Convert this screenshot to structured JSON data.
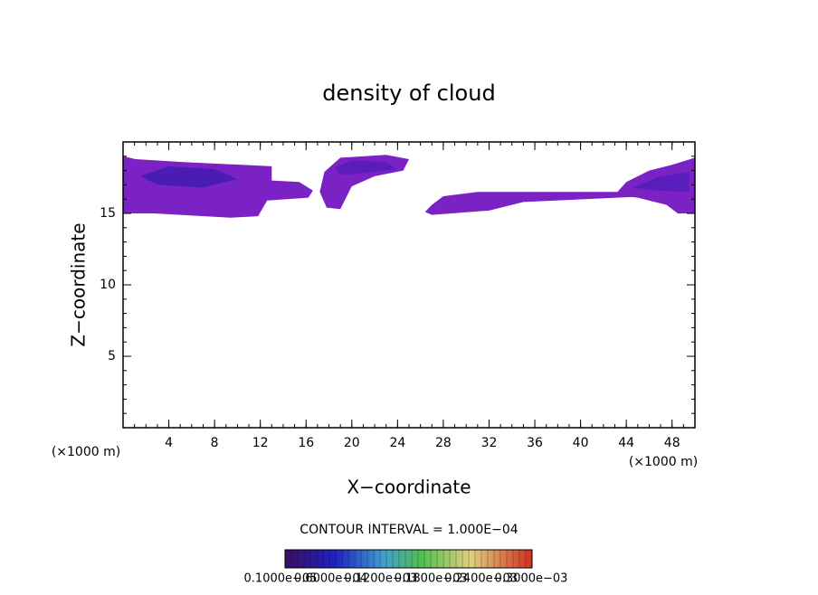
{
  "chart_data": {
    "type": "contour",
    "title": "density of cloud",
    "xlabel": "X−coordinate",
    "ylabel": "Z−coordinate",
    "xunit": "(×1000 m)",
    "annotation": "CONTOUR INTERVAL = 1.000E−04",
    "xlim": [
      0,
      50
    ],
    "xticks": [
      4,
      8,
      12,
      16,
      20,
      24,
      28,
      32,
      36,
      40,
      44,
      48
    ],
    "ylim": [
      0,
      20
    ],
    "yticks": [
      5,
      10,
      15
    ],
    "regions": [
      {
        "color": "#7a22c4",
        "x": [
          0,
          1.1,
          5.1,
          13,
          13,
          15.4,
          16.6,
          16.2,
          12.6,
          11.8,
          9.4,
          2.7,
          0
        ],
        "y": [
          19,
          18.8,
          18.6,
          18.3,
          17.3,
          17.2,
          16.6,
          16.1,
          15.9,
          14.8,
          14.7,
          15,
          15
        ]
      },
      {
        "color": "#7a22c4",
        "x": [
          17.2,
          17.6,
          19,
          23,
          25,
          24.5,
          22,
          20,
          19,
          17.8
        ],
        "y": [
          16.5,
          17.9,
          18.9,
          19.1,
          18.8,
          18,
          17.6,
          16.9,
          15.3,
          15.4
        ]
      },
      {
        "color": "#7a22c4",
        "x": [
          26.4,
          27,
          28,
          31,
          45.5,
          46,
          35,
          32,
          27
        ],
        "y": [
          15.1,
          15.6,
          16.2,
          16.5,
          16.5,
          16.2,
          15.8,
          15.2,
          14.9
        ]
      },
      {
        "color": "#7a22c4",
        "x": [
          43,
          44,
          46,
          48,
          50,
          50,
          48.5,
          47.5,
          45
        ],
        "y": [
          16.3,
          17.2,
          18,
          18.4,
          18.9,
          15,
          15,
          15.6,
          16.1
        ]
      },
      {
        "color": "#4a1cb4",
        "x": [
          1.5,
          4,
          8,
          10,
          7,
          3
        ],
        "y": [
          17.6,
          18.3,
          18.1,
          17.4,
          16.8,
          17
        ]
      },
      {
        "color": "#5a1cbc",
        "x": [
          18.5,
          20,
          23,
          24,
          21,
          19
        ],
        "y": [
          18.2,
          18.7,
          18.6,
          18.1,
          17.8,
          17.7
        ]
      },
      {
        "color": "#5a1cbc",
        "x": [
          44.5,
          47,
          49.5,
          49.5,
          47
        ],
        "y": [
          16.8,
          17.6,
          17.9,
          16.5,
          16.6
        ]
      }
    ],
    "colorbar_labels": [
      "0.1000e−05",
      "0.6000e−04",
      "0.1200e−03",
      "0.1800e−03",
      "0.2400e−03",
      "0.3000e−03"
    ]
  }
}
